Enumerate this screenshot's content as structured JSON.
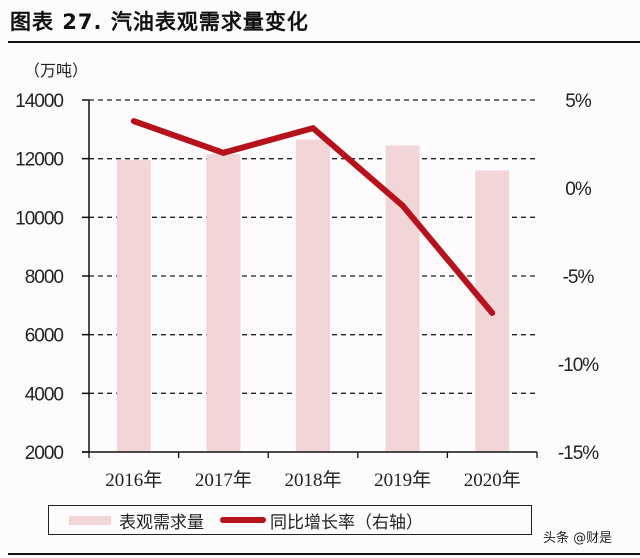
{
  "header": {
    "title": "图表 27. 汽油表观需求量变化",
    "unit_label": "（万吨）"
  },
  "legend": {
    "bar_label": "表观需求量",
    "line_label": "同比增长率（右轴）"
  },
  "watermark": "头条 @财是",
  "colors": {
    "bar": "#f2d6d7",
    "line": "#b5121b",
    "grid": "#222222",
    "axis": "#111111",
    "background": "#fdfbfc"
  },
  "chart_data": {
    "type": "bar",
    "title": "图表 27. 汽油表观需求量变化",
    "xlabel": "",
    "ylabel": "（万吨）",
    "y2label": "同比增长率（右轴）",
    "categories": [
      "2016年",
      "2017年",
      "2018年",
      "2019年",
      "2020年"
    ],
    "series": [
      {
        "name": "表观需求量",
        "type": "bar",
        "axis": "left",
        "values": [
          11950,
          12150,
          12650,
          12450,
          11600
        ]
      },
      {
        "name": "同比增长率（右轴）",
        "type": "line",
        "axis": "right",
        "unit": "%",
        "values": [
          3.8,
          2.0,
          3.4,
          -1.0,
          -7.1
        ]
      }
    ],
    "ylim": [
      2000,
      14000
    ],
    "yticks": [
      14000,
      12000,
      10000,
      8000,
      6000,
      4000,
      2000
    ],
    "y2lim": [
      -15,
      5
    ],
    "y2ticks": [
      "5%",
      "0%",
      "-5%",
      "-10%",
      "-15%"
    ],
    "y2tick_values": [
      5,
      0,
      -5,
      -10,
      -15
    ],
    "grid": "horizontal dashed at left-axis ticks",
    "legend_position": "bottom"
  }
}
